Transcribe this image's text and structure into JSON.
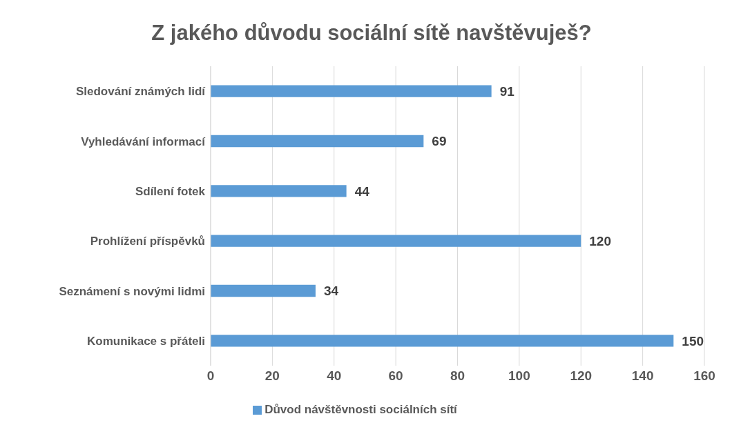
{
  "chart_data": {
    "type": "bar",
    "orientation": "horizontal",
    "title": "Z jakého důvodu sociální sítě navštěvuješ?",
    "categories": [
      "Sledování známých lidí",
      "Vyhledávání informací",
      "Sdílení fotek",
      "Prohlížení příspěvků",
      "Seznámení s novými lidmi",
      "Komunikace s přáteli"
    ],
    "series": [
      {
        "name": "Důvod návštěvnosti sociálních sítí",
        "color": "#5b9bd5",
        "values": [
          91,
          69,
          44,
          120,
          34,
          150
        ]
      }
    ],
    "xlim": [
      0,
      160
    ],
    "xticks": [
      0,
      20,
      40,
      60,
      80,
      100,
      120,
      140,
      160
    ],
    "grid": "x",
    "legend": "bottom",
    "data_labels": true
  }
}
